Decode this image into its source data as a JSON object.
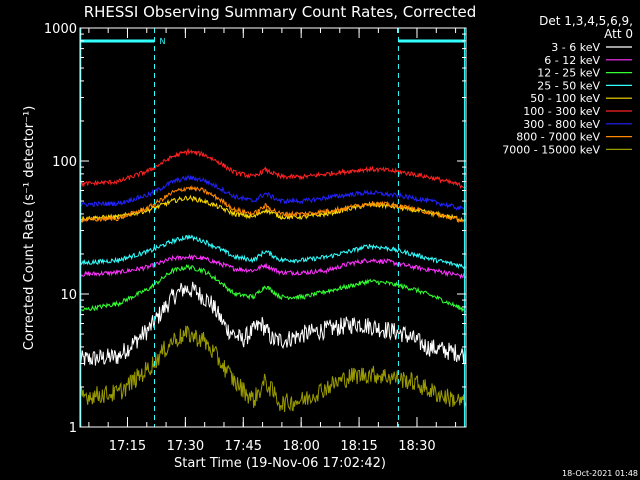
{
  "chart_data": {
    "type": "line",
    "title": "RHESSI Observing Summary Count Rates, Corrected",
    "xlabel": "Start Time (19-Nov-06 17:02:42)",
    "ylabel": "Corrected Count Rate (s⁻¹ detector⁻¹)",
    "y_scale": "log",
    "ylim": [
      1,
      1000
    ],
    "xlim_minutes": [
      0,
      100
    ],
    "x_ticks": [
      {
        "label": "17:15",
        "minute": 12.3
      },
      {
        "label": "17:30",
        "minute": 27.3
      },
      {
        "label": "17:45",
        "minute": 42.3
      },
      {
        "label": "18:00",
        "minute": 57.3
      },
      {
        "label": "18:15",
        "minute": 72.3
      },
      {
        "label": "18:30",
        "minute": 87.3
      }
    ],
    "y_ticks": [
      {
        "label": "1",
        "value": 1
      },
      {
        "label": "10",
        "value": 10
      },
      {
        "label": "100",
        "value": 100
      },
      {
        "label": "1000",
        "value": 1000
      }
    ],
    "legend_header": "Det 1,3,4,5,6,9,",
    "legend_header2": "Att 0",
    "legend_position": "right",
    "series": [
      {
        "name": "3 - 6 keV",
        "color": "#ffffff",
        "x": [
          0,
          10,
          18,
          24,
          27,
          30,
          34,
          38,
          42,
          47,
          50,
          53,
          58,
          65,
          72,
          78,
          84,
          90,
          100
        ],
        "y": [
          3.2,
          3.4,
          5.5,
          9.5,
          11,
          10.5,
          8.5,
          5.5,
          4.5,
          6,
          4.5,
          4.5,
          5,
          5.5,
          6,
          5.5,
          5,
          4,
          3.5
        ]
      },
      {
        "name": "6 - 12 keV",
        "color": "#ff33ff",
        "x": [
          0,
          10,
          18,
          24,
          28,
          32,
          36,
          40,
          45,
          48,
          52,
          58,
          64,
          70,
          75,
          80,
          86,
          92,
          100
        ],
        "y": [
          14,
          14.5,
          16,
          18.5,
          19,
          18.5,
          17,
          15.5,
          15,
          16.5,
          14.5,
          14.5,
          15,
          17,
          18,
          17.5,
          16,
          15,
          13.5
        ]
      },
      {
        "name": "12 - 25 keV",
        "color": "#33ff33",
        "x": [
          0,
          10,
          18,
          24,
          28,
          32,
          36,
          40,
          45,
          48,
          52,
          58,
          64,
          70,
          75,
          80,
          86,
          92,
          100
        ],
        "y": [
          7.5,
          8.5,
          11,
          15,
          16,
          15,
          12.5,
          10,
          9.5,
          11.5,
          9.5,
          9.5,
          10.5,
          11.5,
          12.5,
          12,
          11,
          9.5,
          7.5
        ]
      },
      {
        "name": "25 - 50 keV",
        "color": "#33ffff",
        "x": [
          0,
          10,
          18,
          24,
          28,
          32,
          36,
          40,
          45,
          48,
          52,
          58,
          64,
          70,
          75,
          80,
          86,
          92,
          100
        ],
        "y": [
          17,
          18,
          21,
          25,
          27,
          25,
          22,
          19,
          18,
          21,
          18,
          18,
          19,
          21,
          23,
          22,
          20,
          18,
          16
        ]
      },
      {
        "name": "50 - 100 keV",
        "color": "#ffdd00",
        "x": [
          0,
          10,
          18,
          24,
          28,
          32,
          36,
          40,
          45,
          48,
          52,
          58,
          64,
          70,
          75,
          80,
          86,
          92,
          100
        ],
        "y": [
          37,
          38,
          43,
          50,
          53,
          50,
          45,
          40,
          38,
          43,
          38,
          38,
          40,
          44,
          47,
          46,
          43,
          40,
          36
        ]
      },
      {
        "name": "100 - 300 keV",
        "color": "#ff2222",
        "x": [
          0,
          10,
          18,
          24,
          28,
          32,
          36,
          40,
          45,
          48,
          52,
          58,
          64,
          70,
          75,
          80,
          86,
          92,
          100
        ],
        "y": [
          67,
          70,
          85,
          108,
          118,
          112,
          98,
          82,
          76,
          86,
          76,
          76,
          80,
          84,
          87,
          85,
          80,
          74,
          64
        ]
      },
      {
        "name": "300 - 800 keV",
        "color": "#2222ff",
        "x": [
          0,
          10,
          18,
          24,
          28,
          32,
          36,
          40,
          45,
          48,
          52,
          58,
          64,
          70,
          75,
          80,
          86,
          92,
          100
        ],
        "y": [
          47,
          48,
          56,
          70,
          75,
          72,
          63,
          54,
          50,
          57,
          50,
          50,
          53,
          56,
          58,
          56,
          53,
          49,
          43
        ]
      },
      {
        "name": "800 - 7000 keV",
        "color": "#ff8800",
        "x": [
          0,
          10,
          18,
          24,
          28,
          32,
          36,
          40,
          45,
          48,
          52,
          58,
          64,
          70,
          75,
          80,
          86,
          92,
          100
        ],
        "y": [
          36,
          37,
          45,
          58,
          63,
          60,
          52,
          43,
          40,
          46,
          40,
          40,
          42,
          45,
          48,
          47,
          44,
          40,
          35
        ]
      },
      {
        "name": "7000 - 15000 keV",
        "color": "#999900",
        "x": [
          0,
          10,
          18,
          24,
          28,
          32,
          36,
          40,
          45,
          48,
          52,
          58,
          64,
          70,
          75,
          80,
          86,
          92,
          100
        ],
        "y": [
          1.7,
          1.8,
          2.8,
          4.5,
          5,
          4.5,
          3.2,
          2.2,
          1.6,
          2.2,
          1.5,
          1.6,
          2,
          2.4,
          2.5,
          2.4,
          2.2,
          1.8,
          1.5
        ]
      }
    ],
    "attenuator_markers_minutes": [
      19.3,
      82.5
    ],
    "spacecraft_markers_minutes": [
      0.2,
      99.6
    ],
    "night_segments_minutes": [
      [
        0.2,
        19.3
      ],
      [
        82.5,
        99.6
      ]
    ],
    "night_label": "N"
  },
  "timestamp": "18-Oct-2021 01:48"
}
